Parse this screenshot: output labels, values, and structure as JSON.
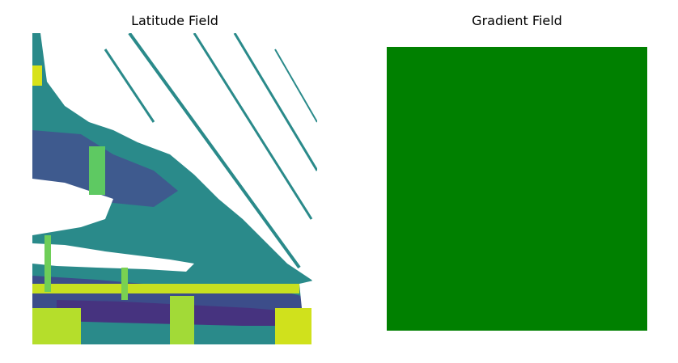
{
  "figure": {
    "background": "#ffffff"
  },
  "chart_data": [
    {
      "type": "heatmap",
      "title": "Latitude Field",
      "colormap": "viridis",
      "colormap_stops": [
        "#440154",
        "#3b528b",
        "#21918c",
        "#5ec962",
        "#fde725"
      ],
      "nodata_color": "#ffffff",
      "axes_visible": false,
      "grid": false,
      "legend": "none"
    },
    {
      "type": "heatmap",
      "title": "Gradient Field",
      "fill_color": "#008000",
      "axes_visible": false,
      "grid": false,
      "legend": "none"
    }
  ]
}
